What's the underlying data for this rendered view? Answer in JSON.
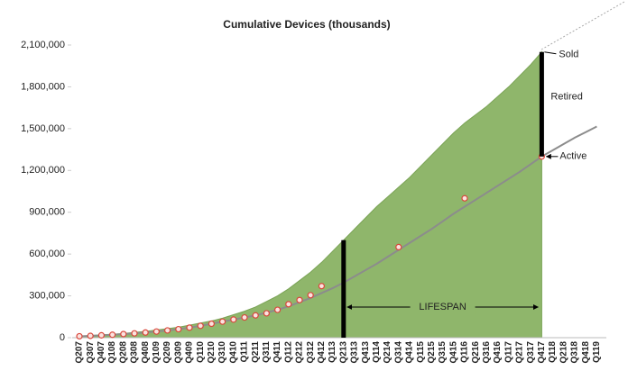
{
  "chart_data": {
    "type": "area_line",
    "title": "Cumulative Devices (thousands)",
    "categories": [
      "Q207",
      "Q307",
      "Q407",
      "Q108",
      "Q208",
      "Q308",
      "Q408",
      "Q109",
      "Q209",
      "Q309",
      "Q409",
      "Q110",
      "Q210",
      "Q310",
      "Q410",
      "Q111",
      "Q211",
      "Q311",
      "Q411",
      "Q112",
      "Q212",
      "Q312",
      "Q412",
      "Q113",
      "Q213",
      "Q313",
      "Q413",
      "Q114",
      "Q214",
      "Q314",
      "Q414",
      "Q115",
      "Q215",
      "Q315",
      "Q415",
      "Q116",
      "Q216",
      "Q316",
      "Q416",
      "Q117",
      "Q217",
      "Q317",
      "Q417",
      "Q118",
      "Q218",
      "Q318",
      "Q418",
      "Q119"
    ],
    "series": [
      {
        "name": "Sold",
        "color": "#8fb66b",
        "values": [
          10000,
          15000,
          20000,
          25000,
          30000,
          38000,
          45000,
          55000,
          65000,
          75000,
          90000,
          105000,
          120000,
          140000,
          165000,
          190000,
          220000,
          260000,
          300000,
          350000,
          410000,
          470000,
          540000,
          620000,
          700000,
          780000,
          860000,
          940000,
          1010000,
          1080000,
          1150000,
          1230000,
          1310000,
          1390000,
          1470000,
          1540000,
          1600000,
          1660000,
          1730000,
          1800000,
          1880000,
          1960000,
          2050000,
          null,
          null,
          null,
          null,
          null
        ]
      },
      {
        "name": "Active",
        "color": "#8c8c8c",
        "values": [
          10000,
          13000,
          17000,
          21000,
          26000,
          31000,
          37000,
          44000,
          52000,
          61000,
          72000,
          85000,
          100000,
          115000,
          130000,
          145000,
          160000,
          180000,
          200000,
          225000,
          255000,
          285000,
          320000,
          355000,
          395000,
          440000,
          485000,
          530000,
          580000,
          630000,
          680000,
          730000,
          780000,
          835000,
          890000,
          940000,
          990000,
          1040000,
          1090000,
          1140000,
          1190000,
          1245000,
          1300000,
          1345000,
          1390000,
          1435000,
          1475000,
          1515000
        ]
      },
      {
        "color": "#d9473c",
        "values": [
          10000,
          13000,
          17000,
          21000,
          26000,
          31000,
          37000,
          44000,
          52000,
          61000,
          72000,
          85000,
          100000,
          115000,
          130000,
          145000,
          160000,
          175000,
          200000,
          240000,
          270000,
          305000,
          370000,
          null,
          null,
          null,
          null,
          null,
          null,
          650000,
          null,
          null,
          null,
          null,
          null,
          1000000,
          null,
          null,
          null,
          null,
          null,
          null,
          1300000,
          null,
          null,
          null,
          null,
          null
        ]
      }
    ],
    "annotations": [
      "Retired",
      "LIFESPAN"
    ],
    "ylim": [
      0,
      2100000
    ],
    "yticks": [
      0,
      {
        "value": 300000,
        "label": "300,000"
      },
      {
        "value": 600000,
        "label": "600,000"
      },
      {
        "value": 900000,
        "label": "900,000"
      },
      {
        "value": 1200000,
        "label": "1,200,000"
      },
      {
        "value": 1500000,
        "label": "1,500,000"
      },
      {
        "value": 1800000,
        "label": "1,800,000"
      },
      {
        "value": 2100000,
        "label": "2,100,000"
      }
    ],
    "grid": false
  }
}
